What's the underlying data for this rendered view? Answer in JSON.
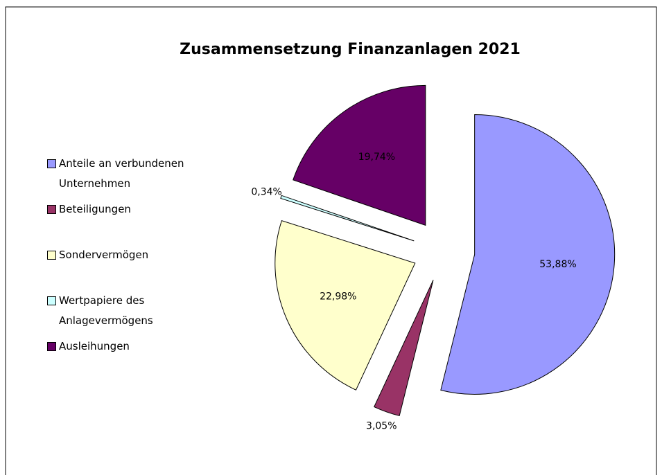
{
  "chart_data": {
    "type": "pie",
    "title": "Zusammensetzung Finanzanlagen 2021",
    "categories": [
      "Anteile an verbundenen Unternehmen",
      "Beteiligungen",
      "Sondervermögen",
      "Wertpapiere des Anlagevermögens",
      "Ausleihungen"
    ],
    "values": [
      53.88,
      3.05,
      22.98,
      0.34,
      19.74
    ],
    "value_labels": [
      "53,88%",
      "3,05%",
      "22,98%",
      "0,34%",
      "19,74%"
    ],
    "colors": [
      "#9999ff",
      "#993366",
      "#ffffcc",
      "#ccffff",
      "#660066"
    ],
    "legend": "left"
  }
}
